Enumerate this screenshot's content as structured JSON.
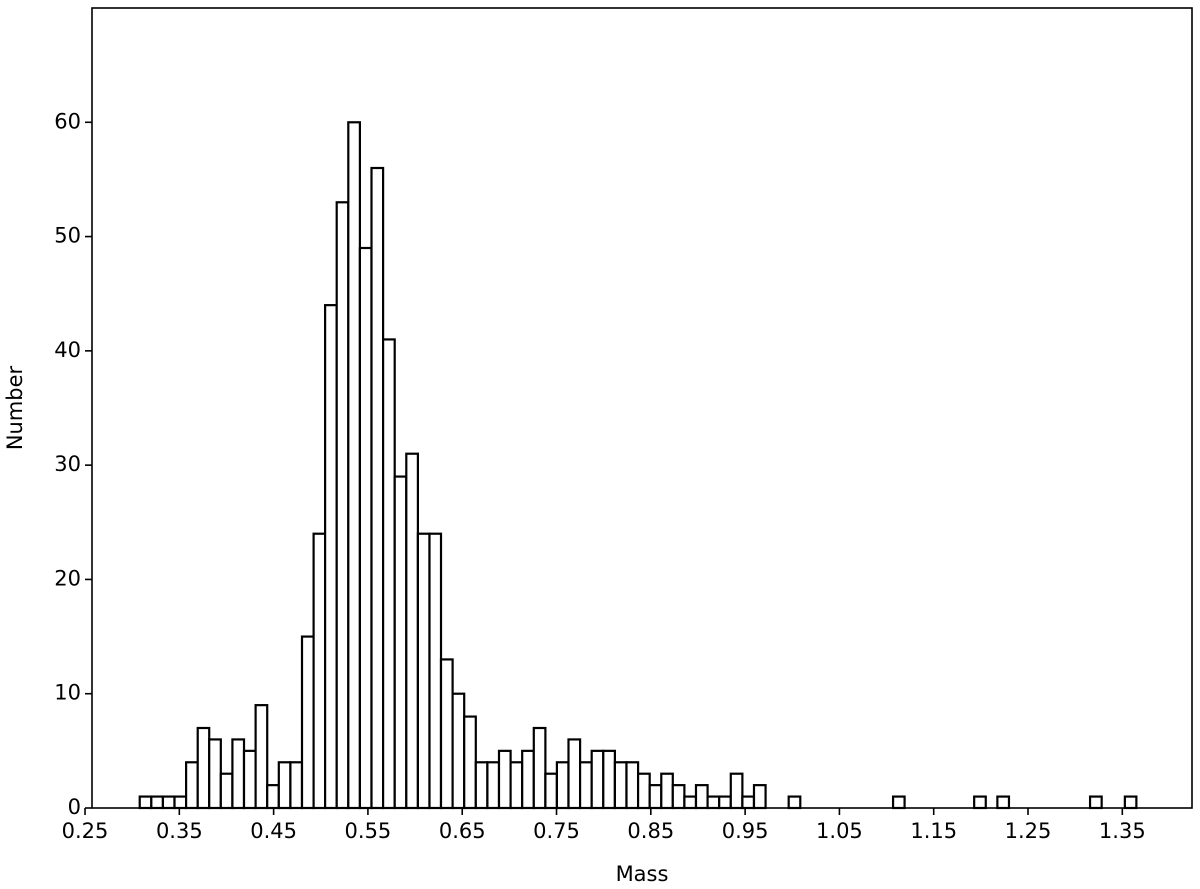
{
  "chart_data": {
    "type": "histogram",
    "xlabel": "Mass",
    "ylabel": "Number",
    "bins": [
      0.308,
      0.3203,
      0.3326,
      0.3449,
      0.3572,
      0.3695,
      0.3817,
      0.394,
      0.4063,
      0.4186,
      0.4309,
      0.4432,
      0.4555,
      0.4678,
      0.4801,
      0.4924,
      0.5046,
      0.5169,
      0.5292,
      0.5415,
      0.5538,
      0.5661,
      0.5784,
      0.5907,
      0.603,
      0.6153,
      0.6275,
      0.6398,
      0.6521,
      0.6644,
      0.6767,
      0.689,
      0.7013,
      0.7136,
      0.7259,
      0.7382,
      0.7504,
      0.7627,
      0.775,
      0.7873,
      0.7996,
      0.8119,
      0.8242,
      0.8365,
      0.8488,
      0.8611,
      0.8733,
      0.8856,
      0.8979,
      0.9102,
      0.9225,
      0.9348,
      0.9471,
      0.9594,
      0.9717,
      0.984,
      0.9962,
      1.0085,
      1.0208,
      1.0331,
      1.0454,
      1.0577,
      1.07,
      1.0823,
      1.0946,
      1.1069,
      1.1191,
      1.1314,
      1.1437,
      1.156,
      1.1683,
      1.1806,
      1.1929,
      1.2052,
      1.2175,
      1.2298,
      1.242,
      1.2543,
      1.2666,
      1.2789,
      1.2912,
      1.3035,
      1.3158,
      1.3281,
      1.3404,
      1.3527,
      1.3649
    ],
    "values": [
      1,
      1,
      1,
      1,
      4,
      7,
      6,
      3,
      6,
      5,
      9,
      2,
      4,
      4,
      15,
      24,
      44,
      53,
      60,
      49,
      56,
      41,
      29,
      31,
      24,
      24,
      13,
      10,
      8,
      4,
      4,
      5,
      4,
      5,
      7,
      3,
      4,
      6,
      4,
      5,
      5,
      4,
      4,
      3,
      2,
      3,
      2,
      1,
      2,
      1,
      1,
      3,
      1,
      2,
      0,
      0,
      1,
      0,
      0,
      0,
      0,
      0,
      0,
      0,
      0,
      1,
      0,
      0,
      0,
      0,
      0,
      0,
      1,
      0,
      1,
      0,
      0,
      0,
      0,
      0,
      0,
      0,
      1,
      0,
      0,
      1
    ],
    "color": "#ffffff",
    "edgecolor": "#000000",
    "xlim": [
      0.2574,
      1.4239
    ],
    "ylim": [
      0,
      70
    ],
    "xticks": [
      0.25,
      0.35,
      0.45,
      0.55,
      0.65,
      0.75,
      0.85,
      0.95,
      1.05,
      1.15,
      1.25,
      1.35
    ],
    "yticks": [
      0,
      10,
      20,
      30,
      40,
      50,
      60
    ]
  }
}
